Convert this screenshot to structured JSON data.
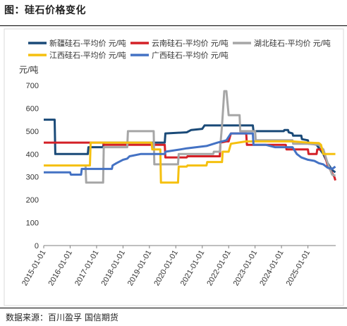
{
  "figure": {
    "title": "图：硅石价格变化",
    "source": "数据来源：百川盈孚  国信期货"
  },
  "chart_data": {
    "type": "line",
    "title": "",
    "xlabel": "",
    "ylabel": "元/吨",
    "ylim": [
      0,
      700
    ],
    "y_ticks": [
      0,
      100,
      200,
      300,
      400,
      500,
      600,
      700
    ],
    "x_range": [
      "2015-01-01",
      "2026-01-20"
    ],
    "x_ticks": [
      "2015-01-01",
      "2016-01-01",
      "2017-01-01",
      "2018-01-01",
      "2019-01-01",
      "2020-01-01",
      "2021-01-01",
      "2022-01-01",
      "2023-01-01",
      "2024-01-01",
      "2025-01-01"
    ],
    "grid": false,
    "legend_position": "top",
    "series": [
      {
        "name": "新疆硅石-平均价 元/吨",
        "color": "#1a4a78",
        "points": [
          [
            "2015-01-01",
            550
          ],
          [
            "2015-06-01",
            550
          ],
          [
            "2015-06-10",
            400
          ],
          [
            "2016-09-01",
            400
          ],
          [
            "2016-09-10",
            430
          ],
          [
            "2017-04-01",
            430
          ],
          [
            "2017-04-10",
            450
          ],
          [
            "2019-08-01",
            450
          ],
          [
            "2019-08-10",
            490
          ],
          [
            "2020-06-01",
            495
          ],
          [
            "2020-08-01",
            505
          ],
          [
            "2021-01-01",
            510
          ],
          [
            "2021-02-01",
            525
          ],
          [
            "2022-12-01",
            525
          ],
          [
            "2022-12-10",
            500
          ],
          [
            "2024-02-01",
            500
          ],
          [
            "2024-02-10",
            505
          ],
          [
            "2024-04-01",
            505
          ],
          [
            "2024-04-10",
            495
          ],
          [
            "2024-06-01",
            490
          ],
          [
            "2024-06-10",
            480
          ],
          [
            "2024-10-01",
            480
          ],
          [
            "2024-10-10",
            465
          ],
          [
            "2025-01-01",
            460
          ],
          [
            "2025-01-10",
            445
          ],
          [
            "2025-03-01",
            445
          ],
          [
            "2025-05-01",
            440
          ],
          [
            "2025-08-01",
            400
          ],
          [
            "2025-10-01",
            360
          ],
          [
            "2025-12-01",
            330
          ],
          [
            "2026-01-15",
            320
          ]
        ]
      },
      {
        "name": "云南硅石-平均价 元/吨",
        "color": "#d42027",
        "points": [
          [
            "2015-01-01",
            450
          ],
          [
            "2017-04-01",
            450
          ],
          [
            "2017-04-10",
            440
          ],
          [
            "2019-03-01",
            440
          ],
          [
            "2019-08-01",
            440
          ],
          [
            "2019-08-10",
            385
          ],
          [
            "2020-06-01",
            385
          ],
          [
            "2020-06-10",
            390
          ],
          [
            "2021-09-01",
            390
          ],
          [
            "2021-09-10",
            450
          ],
          [
            "2021-12-01",
            455
          ],
          [
            "2022-01-01",
            455
          ],
          [
            "2022-02-01",
            490
          ],
          [
            "2022-09-01",
            490
          ],
          [
            "2022-09-10",
            440
          ],
          [
            "2023-01-01",
            440
          ],
          [
            "2023-06-01",
            440
          ],
          [
            "2023-06-10",
            440
          ],
          [
            "2024-03-01",
            440
          ],
          [
            "2024-03-10",
            420
          ],
          [
            "2025-01-01",
            420
          ],
          [
            "2025-01-10",
            400
          ],
          [
            "2025-05-01",
            400
          ],
          [
            "2025-05-10",
            420
          ],
          [
            "2025-08-01",
            420
          ],
          [
            "2025-10-01",
            350
          ],
          [
            "2026-01-01",
            300
          ],
          [
            "2026-01-15",
            285
          ]
        ]
      },
      {
        "name": "湖北硅石-平均价 元/吨",
        "color": "#a6a6a6",
        "points": [
          [
            "2015-01-01",
            350
          ],
          [
            "2016-08-01",
            350
          ],
          [
            "2016-08-10",
            275
          ],
          [
            "2017-04-01",
            275
          ],
          [
            "2017-04-10",
            430
          ],
          [
            "2018-03-01",
            430
          ],
          [
            "2018-03-10",
            500
          ],
          [
            "2019-03-01",
            500
          ],
          [
            "2019-03-10",
            355
          ],
          [
            "2020-02-01",
            355
          ],
          [
            "2020-02-10",
            400
          ],
          [
            "2021-06-01",
            400
          ],
          [
            "2021-06-10",
            410
          ],
          [
            "2021-09-01",
            410
          ],
          [
            "2021-10-01",
            525
          ],
          [
            "2021-11-01",
            675
          ],
          [
            "2021-12-01",
            675
          ],
          [
            "2022-01-01",
            570
          ],
          [
            "2022-06-01",
            570
          ],
          [
            "2022-06-10",
            500
          ],
          [
            "2023-01-01",
            500
          ],
          [
            "2023-01-10",
            460
          ],
          [
            "2024-06-01",
            460
          ],
          [
            "2024-06-10",
            445
          ],
          [
            "2025-01-01",
            445
          ],
          [
            "2025-06-01",
            440
          ],
          [
            "2025-08-01",
            420
          ],
          [
            "2025-10-01",
            360
          ],
          [
            "2025-12-01",
            310
          ],
          [
            "2026-01-15",
            305
          ]
        ]
      },
      {
        "name": "江西硅石-平均价 元/吨",
        "color": "#f5c00f",
        "points": [
          [
            "2015-01-01",
            350
          ],
          [
            "2016-10-01",
            350
          ],
          [
            "2016-10-10",
            450
          ],
          [
            "2019-02-01",
            450
          ],
          [
            "2019-02-10",
            420
          ],
          [
            "2019-06-01",
            420
          ],
          [
            "2019-06-10",
            275
          ],
          [
            "2020-02-01",
            275
          ],
          [
            "2020-02-10",
            345
          ],
          [
            "2020-06-01",
            345
          ],
          [
            "2020-06-10",
            350
          ],
          [
            "2021-03-01",
            350
          ],
          [
            "2021-03-10",
            365
          ],
          [
            "2021-10-01",
            365
          ],
          [
            "2021-10-10",
            410
          ],
          [
            "2022-01-01",
            410
          ],
          [
            "2022-01-10",
            420
          ],
          [
            "2022-02-01",
            445
          ],
          [
            "2022-09-01",
            455
          ],
          [
            "2024-01-01",
            455
          ],
          [
            "2024-06-01",
            455
          ],
          [
            "2025-01-01",
            450
          ],
          [
            "2025-06-01",
            448
          ],
          [
            "2025-07-01",
            440
          ],
          [
            "2025-08-01",
            400
          ],
          [
            "2026-01-15",
            400
          ]
        ]
      },
      {
        "name": "广西硅石-平均价 元/吨",
        "color": "#4472c4",
        "points": [
          [
            "2015-01-01",
            320
          ],
          [
            "2016-01-01",
            320
          ],
          [
            "2016-01-10",
            310
          ],
          [
            "2016-06-01",
            310
          ],
          [
            "2016-06-10",
            335
          ],
          [
            "2017-08-01",
            335
          ],
          [
            "2017-08-10",
            350
          ],
          [
            "2017-10-01",
            360
          ],
          [
            "2018-01-01",
            375
          ],
          [
            "2018-03-01",
            380
          ],
          [
            "2018-04-01",
            390
          ],
          [
            "2018-09-01",
            400
          ],
          [
            "2019-08-01",
            400
          ],
          [
            "2019-08-10",
            410
          ],
          [
            "2020-03-01",
            420
          ],
          [
            "2020-06-01",
            425
          ],
          [
            "2021-03-01",
            435
          ],
          [
            "2021-08-01",
            450
          ],
          [
            "2021-12-01",
            460
          ],
          [
            "2022-02-01",
            490
          ],
          [
            "2022-12-01",
            490
          ],
          [
            "2022-12-10",
            440
          ],
          [
            "2023-06-01",
            440
          ],
          [
            "2023-10-01",
            430
          ],
          [
            "2024-06-01",
            430
          ],
          [
            "2024-08-01",
            400
          ],
          [
            "2024-10-01",
            385
          ],
          [
            "2025-01-01",
            375
          ],
          [
            "2025-04-01",
            370
          ],
          [
            "2025-06-01",
            360
          ],
          [
            "2025-08-01",
            355
          ],
          [
            "2025-10-01",
            340
          ],
          [
            "2025-12-01",
            335
          ],
          [
            "2026-01-15",
            345
          ]
        ]
      }
    ]
  }
}
